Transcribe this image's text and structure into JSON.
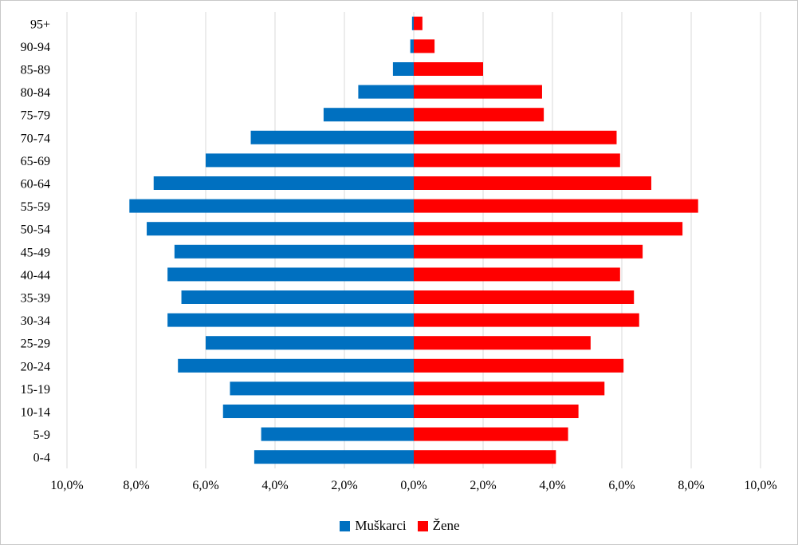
{
  "chart_data": {
    "type": "bar",
    "orientation": "horizontal",
    "title": "",
    "xlabel": "",
    "ylabel": "",
    "xlim": [
      -10,
      10
    ],
    "x_ticks": [
      "10,0%",
      "8,0%",
      "6,0%",
      "4,0%",
      "2,0%",
      "0,0%",
      "2,0%",
      "4,0%",
      "6,0%",
      "8,0%",
      "10,0%"
    ],
    "grid": true,
    "legend_position": "bottom",
    "categories": [
      "95+",
      "90-94",
      "85-89",
      "80-84",
      "75-79",
      "70-74",
      "65-69",
      "60-64",
      "55-59",
      "50-54",
      "45-49",
      "40-44",
      "35-39",
      "30-34",
      "25-29",
      "20-24",
      "15-19",
      "10-14",
      "5-9",
      "0-4"
    ],
    "series": [
      {
        "name": "Muškarci",
        "color": "#0070C0",
        "values": [
          0.05,
          0.1,
          0.6,
          1.6,
          2.6,
          4.7,
          6.0,
          7.5,
          8.2,
          7.7,
          6.9,
          7.1,
          6.7,
          7.1,
          6.0,
          6.8,
          5.3,
          5.5,
          4.4,
          4.6
        ]
      },
      {
        "name": "Žene",
        "color": "#FF0000",
        "values": [
          0.25,
          0.6,
          2.0,
          3.7,
          3.75,
          5.85,
          5.95,
          6.85,
          8.2,
          7.75,
          6.6,
          5.95,
          6.35,
          6.5,
          5.1,
          6.05,
          5.5,
          4.75,
          4.45,
          4.1
        ]
      }
    ]
  }
}
